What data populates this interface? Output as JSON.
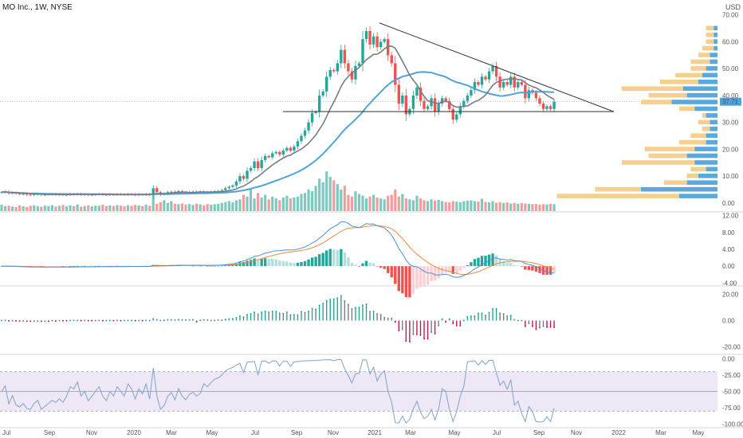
{
  "header": {
    "ticker": "MO Inc., 1W, NYSE",
    "currency": "USD",
    "last_price_label": "37.71"
  },
  "colors": {
    "up": "#26a69a",
    "down": "#ef5350",
    "up_vol": "#7fc8bd",
    "down_vol": "#f29d9b",
    "ma_fast": "#787b86",
    "ma_slow": "#4ea3d8",
    "trendline": "#333333",
    "profile_up": "#5aa8dc",
    "profile_down": "#f4cf8e",
    "macd_line": "#4a90d9",
    "signal_line": "#f0893a",
    "osc_pos": "#26a69a",
    "osc_neg": "#c2185b",
    "wr_line": "#7fa4c8",
    "wr_band": "#ede7f6"
  },
  "chart_data": [
    {
      "type": "candlestick",
      "name": "price",
      "x_tick_labels": [
        "Jul",
        "Sep",
        "Nov",
        "2020",
        "Mar",
        "May",
        "Jul",
        "Sep",
        "Nov",
        "2021",
        "Mar",
        "May",
        "Jul",
        "Sep",
        "Nov",
        "2022",
        "Mar",
        "May"
      ],
      "y_ticks": [
        0,
        10,
        20,
        30,
        40,
        50,
        60,
        70
      ],
      "y_tick_labels": [
        "0.00",
        "10.00",
        "20.00",
        "30.00",
        "40.00",
        "50.00",
        "60.00",
        "70.00"
      ],
      "ylim": [
        -3,
        72
      ],
      "close": [
        4.0,
        4.2,
        3.6,
        3.8,
        3.5,
        3.3,
        3.4,
        3.1,
        3.0,
        3.2,
        3.3,
        3.0,
        3.1,
        3.2,
        3.3,
        3.1,
        3.2,
        3.0,
        3.1,
        3.3,
        3.2,
        3.4,
        3.1,
        3.2,
        3.0,
        3.1,
        3.2,
        3.3,
        3.1,
        3.0,
        3.2,
        3.1,
        3.3,
        3.2,
        3.1,
        3.3,
        3.2,
        3.0,
        3.2,
        3.1,
        3.3,
        3.0,
        5.5,
        4.0,
        3.3,
        3.5,
        4.0,
        4.2,
        3.8,
        4.4,
        4.0,
        3.8,
        4.1,
        4.2,
        4.0,
        4.3,
        4.1,
        4.0,
        4.2,
        4.4,
        4.5,
        4.8,
        5.5,
        6.0,
        6.5,
        8.0,
        10.0,
        9.0,
        12.0,
        13.0,
        15.5,
        13.0,
        16.0,
        17.5,
        17.0,
        18.5,
        19.0,
        18.0,
        19.5,
        20.5,
        19.5,
        21.0,
        23.0,
        25.0,
        27.0,
        30.0,
        33.5,
        34.0,
        40.0,
        41.5,
        47.0,
        49.5,
        49.0,
        52.0,
        57.0,
        52.0,
        49.0,
        46.0,
        51.0,
        52.0,
        61.0,
        64.0,
        59.0,
        62.0,
        58.0,
        60.0,
        61.0,
        55.0,
        52.0,
        44.0,
        37.0,
        40.0,
        33.0,
        35.0,
        40.0,
        43.0,
        38.0,
        35.0,
        36.0,
        39.0,
        34.0,
        37.0,
        39.0,
        38.0,
        35.0,
        31.0,
        33.0,
        36.0,
        38.0,
        40.0,
        42.0,
        45.0,
        44.0,
        47.0,
        46.0,
        49.0,
        51.0,
        47.0,
        43.0,
        45.0,
        44.0,
        47.0,
        43.0,
        45.0,
        44.0,
        39.0,
        42.0,
        41.0,
        39.0,
        37.0,
        35.0,
        36.0,
        35.0,
        37.7
      ]
    },
    {
      "type": "bar",
      "name": "volume",
      "values": [
        3.5,
        2.8,
        3.0,
        2.5,
        2.2,
        3.1,
        2.6,
        2.3,
        2.9,
        3.2,
        2.7,
        2.4,
        3.0,
        2.8,
        3.3,
        2.5,
        2.9,
        3.4,
        2.6,
        3.1,
        2.7,
        3.6,
        2.4,
        2.8,
        3.2,
        2.6,
        3.0,
        2.9,
        3.5,
        2.7,
        3.1,
        2.8,
        3.3,
        3.0,
        2.6,
        3.2,
        2.9,
        3.4,
        3.1,
        2.7,
        3.5,
        2.9,
        10.0,
        4.0,
        5.0,
        6.0,
        4.5,
        5.5,
        4.0,
        3.8,
        4.2,
        3.6,
        3.9,
        3.4,
        4.1,
        3.7,
        3.2,
        3.9,
        3.5,
        3.8,
        4.0,
        4.5,
        5.0,
        5.5,
        4.8,
        6.0,
        6.5,
        9.0,
        8.0,
        12.0,
        7.0,
        10.0,
        7.5,
        9.0,
        6.5,
        8.0,
        7.0,
        6.0,
        7.5,
        8.5,
        7.0,
        7.5,
        8.0,
        9.5,
        10.0,
        12.0,
        11.0,
        14.0,
        18.0,
        16.0,
        22.0,
        19.0,
        17.0,
        15.0,
        12.0,
        14.0,
        9.0,
        8.0,
        11.0,
        9.5,
        8.5,
        7.0,
        8.0,
        9.0,
        7.5,
        7.0,
        6.5,
        8.5,
        9.0,
        12.0,
        8.0,
        9.5,
        7.0,
        6.5,
        6.0,
        8.5,
        7.0,
        6.0,
        5.5,
        6.5,
        5.8,
        6.2,
        5.5,
        5.0,
        4.8,
        5.5,
        5.2,
        4.9,
        5.5,
        5.8,
        6.0,
        5.5,
        5.2,
        6.8,
        5.0,
        4.8,
        5.5,
        4.6,
        5.0,
        4.5,
        4.8,
        4.2,
        4.5,
        4.0,
        4.4,
        4.2,
        4.0,
        3.8,
        3.9,
        3.6,
        3.8,
        3.7,
        4.0,
        3.8
      ],
      "ylim": [
        0,
        23
      ]
    },
    {
      "type": "horizontal_bar",
      "name": "volume_profile",
      "rows": [
        {
          "price": 2.5,
          "up": 10,
          "down": 32
        },
        {
          "price": 5.0,
          "up": 20,
          "down": 12
        },
        {
          "price": 7.5,
          "up": 8,
          "down": 6
        },
        {
          "price": 10.0,
          "up": 5,
          "down": 3
        },
        {
          "price": 12.5,
          "up": 3,
          "down": 4
        },
        {
          "price": 15.0,
          "up": 6,
          "down": 19
        },
        {
          "price": 17.5,
          "up": 8,
          "down": 10
        },
        {
          "price": 20.0,
          "up": 6,
          "down": 13
        },
        {
          "price": 22.5,
          "up": 3,
          "down": 7
        },
        {
          "price": 25.0,
          "up": 3,
          "down": 4
        },
        {
          "price": 27.5,
          "up": 2,
          "down": 2
        },
        {
          "price": 30.0,
          "up": 2,
          "down": 3
        },
        {
          "price": 32.5,
          "up": 3,
          "down": 1
        },
        {
          "price": 35.0,
          "up": 6,
          "down": 4
        },
        {
          "price": 37.5,
          "up": 12,
          "down": 8
        },
        {
          "price": 40.0,
          "up": 8,
          "down": 10
        },
        {
          "price": 42.5,
          "up": 9,
          "down": 16
        },
        {
          "price": 45.0,
          "up": 5,
          "down": 10
        },
        {
          "price": 47.5,
          "up": 4,
          "down": 7
        },
        {
          "price": 50.0,
          "up": 3,
          "down": 4
        },
        {
          "price": 52.5,
          "up": 2,
          "down": 5
        },
        {
          "price": 55.0,
          "up": 2,
          "down": 3
        },
        {
          "price": 57.5,
          "up": 1,
          "down": 3
        },
        {
          "price": 60.0,
          "up": 1,
          "down": 2
        },
        {
          "price": 62.5,
          "up": 1,
          "down": 2
        },
        {
          "price": 65.0,
          "up": 1,
          "down": 2
        }
      ]
    },
    {
      "type": "line",
      "name": "macd",
      "y_ticks": [
        -4,
        0,
        4,
        8,
        12
      ],
      "y_tick_labels": [
        "-4.00",
        "0.00",
        "4.00",
        "8.00",
        "12.00"
      ],
      "ylim": [
        -4.5,
        12.5
      ]
    },
    {
      "type": "bar",
      "name": "oscillator",
      "y_ticks": [
        -20,
        0,
        20
      ],
      "y_tick_labels": [
        "-20.00",
        "0.00",
        "20.00"
      ],
      "ylim": [
        -25,
        25
      ]
    },
    {
      "type": "line",
      "name": "williams_r",
      "y_ticks": [
        0,
        -25,
        -50,
        -75,
        -100
      ],
      "y_tick_labels": [
        "0.00",
        "-25.00",
        "-50.00",
        "-75.00",
        "-100.00"
      ],
      "levels": [
        -20,
        -50,
        -80
      ],
      "ylim": [
        -104,
        4
      ]
    }
  ]
}
